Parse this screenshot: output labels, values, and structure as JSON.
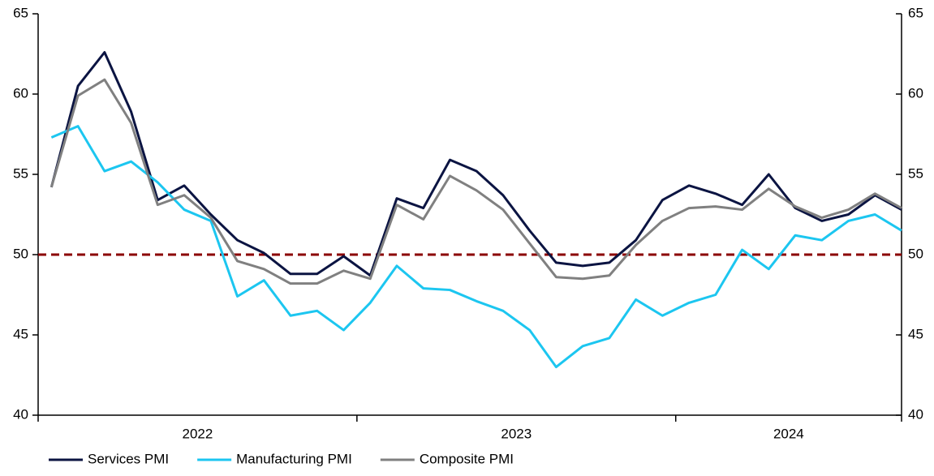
{
  "chart_data": {
    "type": "line",
    "categories": [
      "2022",
      null,
      null,
      null,
      null,
      null,
      null,
      null,
      null,
      null,
      null,
      null,
      "2023",
      null,
      null,
      null,
      null,
      null,
      null,
      null,
      null,
      null,
      null,
      null,
      "2024",
      null,
      null,
      null,
      null,
      null,
      null,
      null,
      null
    ],
    "series": [
      {
        "name": "Services PMI",
        "color": "#0b1442",
        "values": [
          54.2,
          60.5,
          62.6,
          58.9,
          53.4,
          54.3,
          52.5,
          50.9,
          50.1,
          48.8,
          48.8,
          49.9,
          48.7,
          53.5,
          52.9,
          55.9,
          55.2,
          53.7,
          51.5,
          49.5,
          49.3,
          49.5,
          50.9,
          53.4,
          54.3,
          53.8,
          53.1,
          55.0,
          52.9,
          52.1,
          52.5,
          53.7,
          52.8
        ]
      },
      {
        "name": "Manufacturing PMI",
        "color": "#1cc6f0",
        "values": [
          57.3,
          58.0,
          55.2,
          55.8,
          54.5,
          52.8,
          52.1,
          47.4,
          48.4,
          46.2,
          46.5,
          45.3,
          47.0,
          49.3,
          47.9,
          47.8,
          47.1,
          46.5,
          45.3,
          43.0,
          44.3,
          44.8,
          47.2,
          46.2,
          47.0,
          47.5,
          50.3,
          49.1,
          51.2,
          50.9,
          52.1,
          52.5,
          51.5
        ]
      },
      {
        "name": "Composite PMI",
        "color": "#808080",
        "values": [
          54.2,
          59.9,
          60.9,
          58.2,
          53.1,
          53.7,
          52.3,
          49.6,
          49.1,
          48.2,
          48.2,
          49.0,
          48.5,
          53.1,
          52.2,
          54.9,
          54.0,
          52.8,
          50.7,
          48.6,
          48.5,
          48.7,
          50.6,
          52.1,
          52.9,
          53.0,
          52.8,
          54.1,
          53.0,
          52.3,
          52.8,
          53.8,
          52.9
        ]
      }
    ],
    "reference_line": {
      "value": 50,
      "color": "#8b0000",
      "style": "dashed"
    },
    "ylim": [
      40,
      65
    ],
    "yticks": [
      40,
      45,
      50,
      55,
      60,
      65
    ],
    "y2lim": [
      40,
      65
    ],
    "y2ticks": [
      40,
      45,
      50,
      55,
      60,
      65
    ],
    "grid": false,
    "legend": "bottom"
  }
}
